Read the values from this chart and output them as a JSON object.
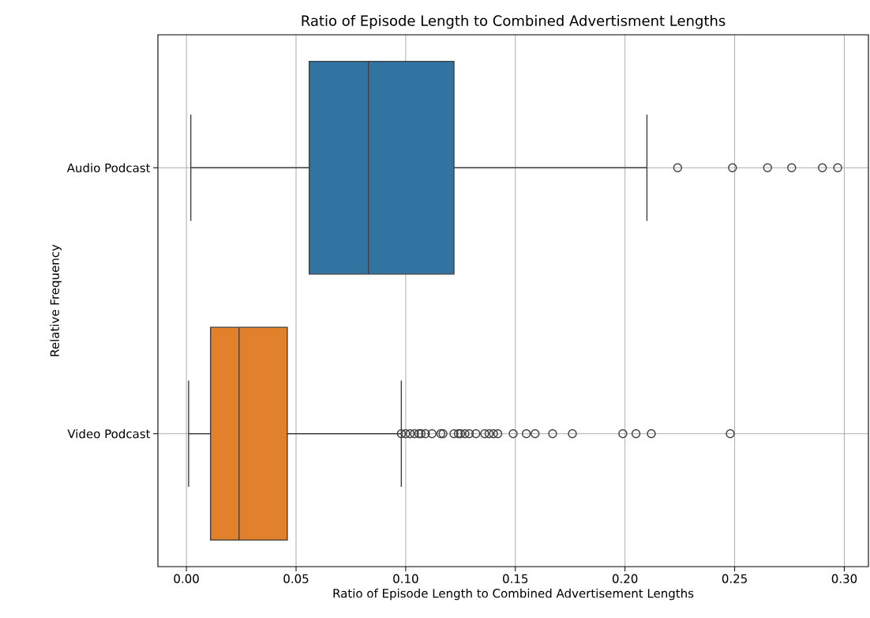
{
  "chart_data": {
    "type": "box",
    "title": "Ratio of Episode Length to Combined Advertisment Lengths",
    "xlabel": "Ratio of Episode Length to Combined Advertisement Lengths",
    "ylabel": "Relative Frequency",
    "orientation": "horizontal",
    "categories": [
      "Audio Podcast",
      "Video Podcast"
    ],
    "boxes": [
      {
        "low": 0.002,
        "q1": 0.056,
        "median": 0.083,
        "q3": 0.122,
        "high": 0.21,
        "outliers": [
          0.224,
          0.249,
          0.265,
          0.276,
          0.29,
          0.297
        ]
      },
      {
        "low": 0.001,
        "q1": 0.011,
        "median": 0.024,
        "q3": 0.046,
        "high": 0.098,
        "outliers": [
          0.098,
          0.1,
          0.102,
          0.104,
          0.106,
          0.107,
          0.109,
          0.112,
          0.116,
          0.117,
          0.122,
          0.124,
          0.125,
          0.127,
          0.129,
          0.132,
          0.136,
          0.138,
          0.14,
          0.142,
          0.149,
          0.155,
          0.159,
          0.167,
          0.176,
          0.199,
          0.205,
          0.212,
          0.248
        ]
      }
    ],
    "colors": [
      "#3274a1",
      "#e1812c"
    ],
    "xlim": [
      -0.013,
      0.311
    ],
    "xticks": [
      {
        "value": 0,
        "label": "0.00"
      },
      {
        "value": 0.05,
        "label": "0.05"
      },
      {
        "value": 0.1,
        "label": "0.10"
      },
      {
        "value": 0.15,
        "label": "0.15"
      },
      {
        "value": 0.2,
        "label": "0.20"
      },
      {
        "value": 0.25,
        "label": "0.25"
      },
      {
        "value": 0.3,
        "label": "0.30"
      }
    ],
    "grid": true,
    "marker": "circle"
  }
}
